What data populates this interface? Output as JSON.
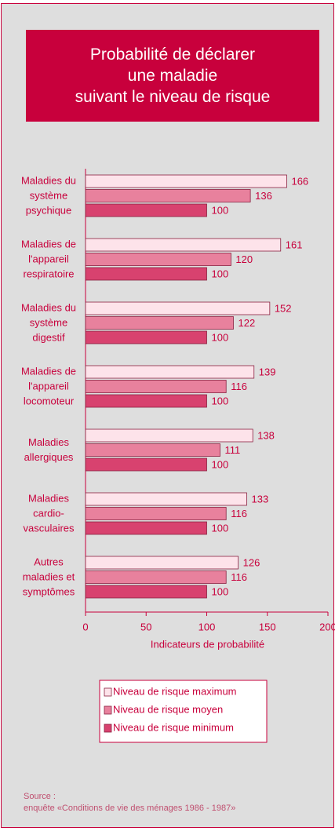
{
  "chart_data": {
    "type": "bar",
    "orientation": "horizontal",
    "title": "Probabilité de déclarer\nune maladie\nsuivant le niveau de risque",
    "categories": [
      "Maladies du\nsystème\npsychique",
      "Maladies de\nl'appareil\nrespiratoire",
      "Maladies du\nsystème\ndigestif",
      "Maladies de\nl'appareil\nlocomoteur",
      "Maladies\nallergiques",
      "Maladies\ncardio-\nvasculaires",
      "Autres\nmaladies et\nsymptômes"
    ],
    "series": [
      {
        "name": "Niveau de risque maximum",
        "color": "#fde3ea",
        "values": [
          166,
          161,
          152,
          139,
          138,
          133,
          126
        ]
      },
      {
        "name": "Niveau de risque moyen",
        "color": "#e8819d",
        "values": [
          136,
          120,
          122,
          116,
          111,
          116,
          116
        ]
      },
      {
        "name": "Niveau de risque minimum",
        "color": "#d8426f",
        "values": [
          100,
          100,
          100,
          100,
          100,
          100,
          100
        ]
      }
    ],
    "xlabel": "Indicateurs de probabilité",
    "xlim": [
      0,
      200
    ],
    "xticks": [
      0,
      50,
      100,
      150,
      200
    ],
    "source_label": "Source :",
    "source": "enquête «Conditions de vie des ménages 1986 - 1987»"
  }
}
